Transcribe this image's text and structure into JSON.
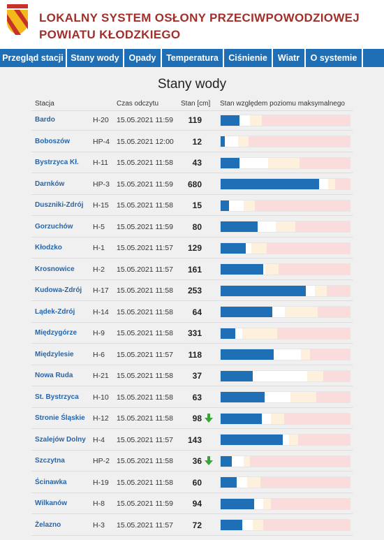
{
  "header": {
    "title_line1": "LOKALNY SYSTEM OSŁONY PRZECIWPOWODZIOWEJ",
    "title_line2": "POWIATU KŁODZKIEGO"
  },
  "nav": [
    "Przegląd stacji",
    "Stany wody",
    "Opady",
    "Temperatura",
    "Ciśnienie",
    "Wiatr",
    "O systemie"
  ],
  "page_title": "Stany wody",
  "table": {
    "columns": [
      "Stacja",
      "Czas odczytu",
      "Stan [cm]",
      "Stan względem poziomu maksymalnego"
    ],
    "rows": [
      {
        "station": "Bardo",
        "code": "H-20",
        "time": "15.05.2021 11:59",
        "level": 119,
        "bar": [
          15,
          8,
          9,
          68
        ]
      },
      {
        "station": "Boboszów",
        "code": "HP-4",
        "time": "15.05.2021 12:00",
        "level": 12,
        "bar": [
          4,
          10,
          8,
          78
        ]
      },
      {
        "station": "Bystrzyca Kł.",
        "code": "H-11",
        "time": "15.05.2021 11:58",
        "level": 43,
        "bar": [
          15,
          22,
          24,
          39
        ]
      },
      {
        "station": "Darnków",
        "code": "HP-3",
        "time": "15.05.2021 11:59",
        "level": 680,
        "bar": [
          76,
          7,
          5,
          12
        ]
      },
      {
        "station": "Duszniki-Zdrój",
        "code": "H-15",
        "time": "15.05.2021 11:58",
        "level": 15,
        "bar": [
          7,
          11,
          9,
          73
        ]
      },
      {
        "station": "Gorzuchów",
        "code": "H-5",
        "time": "15.05.2021 11:59",
        "level": 80,
        "bar": [
          29,
          14,
          15,
          42
        ]
      },
      {
        "station": "Kłodzko",
        "code": "H-1",
        "time": "15.05.2021 11:57",
        "level": 129,
        "bar": [
          20,
          4,
          12,
          64
        ]
      },
      {
        "station": "Krosnowice",
        "code": "H-2",
        "time": "15.05.2021 11:57",
        "level": 161,
        "bar": [
          33,
          2,
          10,
          55
        ]
      },
      {
        "station": "Kudowa-Zdrój",
        "code": "H-17",
        "time": "15.05.2021 11:58",
        "level": 253,
        "bar": [
          66,
          7,
          9,
          18
        ]
      },
      {
        "station": "Lądek-Zdrój",
        "code": "H-14",
        "time": "15.05.2021 11:58",
        "level": 64,
        "bar": [
          40,
          10,
          25,
          25
        ]
      },
      {
        "station": "Międzygórze",
        "code": "H-9",
        "time": "15.05.2021 11:58",
        "level": 331,
        "bar": [
          12,
          5,
          27,
          56
        ]
      },
      {
        "station": "Międzylesie",
        "code": "H-6",
        "time": "15.05.2021 11:57",
        "level": 118,
        "bar": [
          41,
          21,
          7,
          31
        ]
      },
      {
        "station": "Nowa Ruda",
        "code": "H-21",
        "time": "15.05.2021 11:58",
        "level": 37,
        "bar": [
          25,
          42,
          12,
          21
        ]
      },
      {
        "station": "St. Bystrzyca",
        "code": "H-10",
        "time": "15.05.2021 11:58",
        "level": 63,
        "bar": [
          34,
          20,
          20,
          26
        ]
      },
      {
        "station": "Stronie Śląskie",
        "code": "H-12",
        "time": "15.05.2021 11:58",
        "level": 98,
        "trend": "down",
        "bar": [
          32,
          7,
          10,
          51
        ]
      },
      {
        "station": "Szalejów Dolny",
        "code": "H-4",
        "time": "15.05.2021 11:57",
        "level": 143,
        "bar": [
          48,
          5,
          7,
          40
        ]
      },
      {
        "station": "Szczytna",
        "code": "HP-2",
        "time": "15.05.2021 11:58",
        "level": 36,
        "trend": "down",
        "bar": [
          9,
          9,
          5,
          77
        ]
      },
      {
        "station": "Ścinawka",
        "code": "H-19",
        "time": "15.05.2021 11:58",
        "level": 60,
        "bar": [
          13,
          8,
          10,
          69
        ]
      },
      {
        "station": "Wilkanów",
        "code": "H-8",
        "time": "15.05.2021 11:59",
        "level": 94,
        "bar": [
          26,
          7,
          6,
          61
        ]
      },
      {
        "station": "Żelazno",
        "code": "H-3",
        "time": "15.05.2021 11:57",
        "level": 72,
        "bar": [
          17,
          8,
          8,
          67
        ]
      }
    ]
  }
}
